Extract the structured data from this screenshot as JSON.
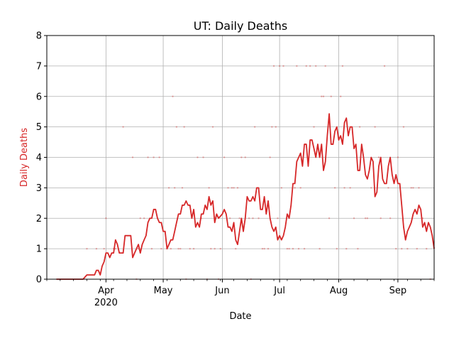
{
  "chart_data": {
    "type": "line",
    "title": "UT: Daily Deaths",
    "xlabel": "Date",
    "ylabel": "Daily Deaths",
    "ylim": [
      0,
      8
    ],
    "xlim": [
      "2020-03-01",
      "2020-09-20"
    ],
    "grid": true,
    "line_color": "#d62728",
    "x_ticks": [
      {
        "date": "2020-04-01",
        "label": "Apr",
        "sublabel": "2020"
      },
      {
        "date": "2020-05-01",
        "label": "May",
        "sublabel": ""
      },
      {
        "date": "2020-06-01",
        "label": "Jun",
        "sublabel": ""
      },
      {
        "date": "2020-07-01",
        "label": "Jul",
        "sublabel": ""
      },
      {
        "date": "2020-08-01",
        "label": "Aug",
        "sublabel": ""
      },
      {
        "date": "2020-09-01",
        "label": "Sep",
        "sublabel": ""
      }
    ],
    "y_ticks": [
      0,
      1,
      2,
      3,
      4,
      5,
      6,
      7,
      8
    ],
    "series": [
      {
        "values_note": "7-day rolling average of daily deaths",
        "x": [
          "2020-03-06",
          "2020-03-13",
          "2020-03-20",
          "2020-03-22",
          "2020-03-24",
          "2020-03-26",
          "2020-03-27",
          "2020-03-28",
          "2020-03-29",
          "2020-03-30",
          "2020-03-31",
          "2020-04-01",
          "2020-04-02",
          "2020-04-03",
          "2020-04-04",
          "2020-04-05",
          "2020-04-06",
          "2020-04-07",
          "2020-04-08",
          "2020-04-10",
          "2020-04-11",
          "2020-04-12",
          "2020-04-14",
          "2020-04-15",
          "2020-04-16",
          "2020-04-17",
          "2020-04-18",
          "2020-04-19",
          "2020-04-20",
          "2020-04-21",
          "2020-04-22",
          "2020-04-23",
          "2020-04-24",
          "2020-04-25",
          "2020-04-26",
          "2020-04-27",
          "2020-04-28",
          "2020-04-29",
          "2020-04-30",
          "2020-05-01",
          "2020-05-02",
          "2020-05-03",
          "2020-05-04",
          "2020-05-05",
          "2020-05-06",
          "2020-05-07",
          "2020-05-08",
          "2020-05-09",
          "2020-05-10",
          "2020-05-11",
          "2020-05-12",
          "2020-05-13",
          "2020-05-14",
          "2020-05-15",
          "2020-05-16",
          "2020-05-17",
          "2020-05-18",
          "2020-05-19",
          "2020-05-20",
          "2020-05-21",
          "2020-05-22",
          "2020-05-23",
          "2020-05-24",
          "2020-05-25",
          "2020-05-26",
          "2020-05-27",
          "2020-05-28",
          "2020-05-29",
          "2020-05-30",
          "2020-06-01",
          "2020-06-02",
          "2020-06-03",
          "2020-06-04",
          "2020-06-05",
          "2020-06-06",
          "2020-06-07",
          "2020-06-08",
          "2020-06-09",
          "2020-06-10",
          "2020-06-11",
          "2020-06-12",
          "2020-06-13",
          "2020-06-14",
          "2020-06-15",
          "2020-06-16",
          "2020-06-17",
          "2020-06-18",
          "2020-06-19",
          "2020-06-20",
          "2020-06-21",
          "2020-06-22",
          "2020-06-23",
          "2020-06-24",
          "2020-06-25",
          "2020-06-26",
          "2020-06-27",
          "2020-06-28",
          "2020-06-29",
          "2020-06-30",
          "2020-07-01",
          "2020-07-02",
          "2020-07-03",
          "2020-07-04",
          "2020-07-05",
          "2020-07-06",
          "2020-07-07",
          "2020-07-08",
          "2020-07-09",
          "2020-07-10",
          "2020-07-11",
          "2020-07-12",
          "2020-07-13",
          "2020-07-14",
          "2020-07-15",
          "2020-07-16",
          "2020-07-17",
          "2020-07-18",
          "2020-07-19",
          "2020-07-20",
          "2020-07-21",
          "2020-07-22",
          "2020-07-23",
          "2020-07-24",
          "2020-07-25",
          "2020-07-26",
          "2020-07-27",
          "2020-07-28",
          "2020-07-29",
          "2020-07-30",
          "2020-07-31",
          "2020-08-01",
          "2020-08-02",
          "2020-08-03",
          "2020-08-04",
          "2020-08-05",
          "2020-08-06",
          "2020-08-07",
          "2020-08-08",
          "2020-08-09",
          "2020-08-10",
          "2020-08-11",
          "2020-08-12",
          "2020-08-13",
          "2020-08-14",
          "2020-08-15",
          "2020-08-16",
          "2020-08-17",
          "2020-08-18",
          "2020-08-19",
          "2020-08-20",
          "2020-08-21",
          "2020-08-22",
          "2020-08-23",
          "2020-08-24",
          "2020-08-25",
          "2020-08-26",
          "2020-08-27",
          "2020-08-28",
          "2020-08-29",
          "2020-08-30",
          "2020-08-31",
          "2020-09-01",
          "2020-09-02",
          "2020-09-03",
          "2020-09-04",
          "2020-09-05",
          "2020-09-06",
          "2020-09-07",
          "2020-09-08",
          "2020-09-09",
          "2020-09-10",
          "2020-09-11",
          "2020-09-12",
          "2020-09-13",
          "2020-09-14",
          "2020-09-15",
          "2020-09-16",
          "2020-09-17",
          "2020-09-18",
          "2020-09-19",
          "2020-09-20"
        ],
        "y": [
          0,
          0,
          0,
          0.14,
          0.14,
          0.14,
          0.29,
          0.29,
          0.14,
          0.43,
          0.57,
          0.86,
          0.86,
          0.71,
          0.86,
          0.86,
          1.29,
          1.14,
          0.86,
          0.86,
          1.43,
          1.43,
          1.43,
          0.71,
          0.86,
          1.0,
          1.14,
          0.86,
          1.14,
          1.29,
          1.43,
          1.86,
          2.0,
          2.0,
          2.29,
          2.29,
          2.0,
          1.86,
          1.86,
          1.57,
          1.57,
          1.0,
          1.14,
          1.29,
          1.29,
          1.57,
          1.86,
          2.14,
          2.14,
          2.43,
          2.43,
          2.57,
          2.43,
          2.43,
          2.0,
          2.29,
          1.71,
          1.86,
          1.71,
          2.14,
          2.14,
          2.43,
          2.29,
          2.71,
          2.43,
          2.57,
          1.86,
          2.14,
          2.0,
          2.14,
          2.29,
          2.14,
          1.71,
          1.71,
          1.57,
          1.86,
          1.29,
          1.14,
          1.57,
          2.0,
          1.57,
          2.0,
          2.71,
          2.57,
          2.57,
          2.71,
          2.57,
          3.0,
          3.0,
          2.29,
          2.29,
          2.71,
          2.14,
          2.57,
          2.0,
          1.71,
          1.57,
          1.71,
          1.29,
          1.43,
          1.29,
          1.43,
          1.71,
          2.14,
          2.0,
          2.43,
          3.14,
          3.14,
          3.86,
          4.0,
          4.14,
          3.71,
          4.43,
          4.43,
          3.71,
          4.57,
          4.57,
          4.29,
          4.0,
          4.43,
          4.0,
          4.43,
          3.57,
          3.86,
          4.71,
          5.43,
          4.43,
          4.43,
          4.86,
          5.0,
          4.57,
          4.71,
          4.43,
          5.14,
          5.29,
          4.71,
          5.0,
          5.0,
          4.29,
          4.43,
          3.57,
          3.57,
          4.43,
          4.0,
          3.43,
          3.29,
          3.57,
          4.0,
          3.86,
          2.71,
          2.86,
          3.71,
          4.0,
          3.29,
          3.14,
          3.14,
          3.71,
          4.0,
          3.43,
          3.14,
          3.43,
          3.14,
          3.14,
          2.43,
          1.71,
          1.29,
          1.57,
          1.71,
          1.86,
          2.14,
          2.29,
          2.14,
          2.43,
          2.29,
          1.71,
          1.86,
          1.57,
          1.86,
          1.71,
          1.43,
          1.0
        ]
      },
      {
        "values_note": "raw daily deaths shown as small faint markers",
        "x": [
          "2020-03-22",
          "2020-03-27",
          "2020-03-31",
          "2020-04-01",
          "2020-04-05",
          "2020-04-06",
          "2020-04-10",
          "2020-04-15",
          "2020-04-17",
          "2020-04-18",
          "2020-04-19",
          "2020-04-21",
          "2020-04-23",
          "2020-04-25",
          "2020-04-26",
          "2020-04-29",
          "2020-04-30",
          "2020-05-03",
          "2020-05-04",
          "2020-05-05",
          "2020-05-06",
          "2020-05-07",
          "2020-05-08",
          "2020-05-09",
          "2020-05-10",
          "2020-05-11",
          "2020-05-12",
          "2020-05-13",
          "2020-05-15",
          "2020-05-17",
          "2020-05-19",
          "2020-05-21",
          "2020-05-22",
          "2020-05-24",
          "2020-05-25",
          "2020-05-26",
          "2020-05-27",
          "2020-05-28",
          "2020-05-30",
          "2020-05-31",
          "2020-06-02",
          "2020-06-04",
          "2020-06-05",
          "2020-06-06",
          "2020-06-07",
          "2020-06-08",
          "2020-06-09",
          "2020-06-10",
          "2020-06-11",
          "2020-06-13",
          "2020-06-15",
          "2020-06-16",
          "2020-06-17",
          "2020-06-18",
          "2020-06-20",
          "2020-06-22",
          "2020-06-23",
          "2020-06-25",
          "2020-06-26",
          "2020-06-27",
          "2020-06-28",
          "2020-06-29",
          "2020-06-30",
          "2020-07-01",
          "2020-07-02",
          "2020-07-03",
          "2020-07-05",
          "2020-07-06",
          "2020-07-08",
          "2020-07-09",
          "2020-07-10",
          "2020-07-11",
          "2020-07-12",
          "2020-07-14",
          "2020-07-15",
          "2020-07-17",
          "2020-07-19",
          "2020-07-20",
          "2020-07-22",
          "2020-07-23",
          "2020-07-24",
          "2020-07-25",
          "2020-07-27",
          "2020-07-28",
          "2020-07-30",
          "2020-07-31",
          "2020-08-02",
          "2020-08-03",
          "2020-08-04",
          "2020-08-05",
          "2020-08-07",
          "2020-08-09",
          "2020-08-11",
          "2020-08-12",
          "2020-08-15",
          "2020-08-16",
          "2020-08-18",
          "2020-08-20",
          "2020-08-22",
          "2020-08-23",
          "2020-08-25",
          "2020-08-27",
          "2020-08-28",
          "2020-08-31",
          "2020-09-01",
          "2020-09-03",
          "2020-09-04",
          "2020-09-06",
          "2020-09-08",
          "2020-09-09",
          "2020-09-11",
          "2020-09-12",
          "2020-09-14",
          "2020-09-16",
          "2020-09-18"
        ],
        "y": [
          1,
          1,
          1,
          2,
          1,
          1,
          5,
          4,
          0,
          1,
          2,
          2,
          4,
          1,
          4,
          4,
          1,
          1,
          3,
          1,
          6,
          3,
          5,
          1,
          1,
          3,
          5,
          0,
          1,
          1,
          4,
          2,
          4,
          0,
          3,
          1,
          5,
          1,
          0,
          1,
          4,
          3,
          2,
          3,
          3,
          1,
          3,
          2,
          4,
          4,
          2,
          0,
          2,
          5,
          2,
          1,
          1,
          1,
          4,
          5,
          7,
          5,
          2,
          7,
          3,
          7,
          1,
          1,
          1,
          3,
          7,
          1,
          3,
          1,
          7,
          7,
          5,
          7,
          1,
          6,
          6,
          7,
          2,
          6,
          3,
          1,
          6,
          7,
          3,
          1,
          3,
          2,
          1,
          5,
          2,
          2,
          3,
          5,
          4,
          2,
          7,
          3,
          2,
          1,
          4,
          1,
          5,
          1,
          3,
          3,
          1,
          3,
          2,
          1,
          0
        ]
      }
    ]
  }
}
